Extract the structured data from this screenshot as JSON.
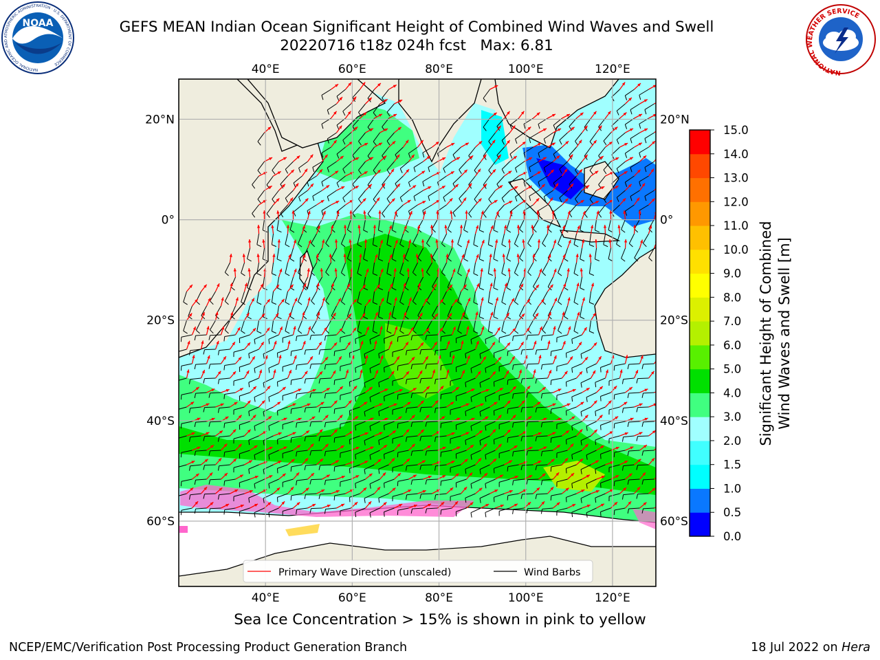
{
  "title": {
    "line1": "GEFS MEAN Indian Ocean Significant Height of Combined Wind Waves and Swell",
    "line2": "20220716 t18z 024h fcst   Max: 6.81"
  },
  "logos": {
    "left": {
      "name": "noaa-logo",
      "text": "NOAA",
      "ring_text": "NATIONAL OCEANIC AND ATMOSPHERIC ADMINISTRATION · U.S. DEPARTMENT OF COMMERCE"
    },
    "right": {
      "name": "nws-logo",
      "ring_text": "NATIONAL WEATHER SERVICE"
    }
  },
  "map": {
    "lon_ticks": [
      "40°E",
      "60°E",
      "80°E",
      "100°E",
      "120°E"
    ],
    "lon_values": [
      40,
      60,
      80,
      100,
      120
    ],
    "lat_ticks_left": [
      "20°N",
      "0°",
      "20°S",
      "40°S",
      "60°S"
    ],
    "lat_ticks_right": [
      "20°N",
      "0°",
      "20°S",
      "40°S",
      "60°S"
    ],
    "lat_values": [
      20,
      0,
      -20,
      -40,
      -60
    ],
    "extent": {
      "lon_min": 20,
      "lon_max": 130,
      "lat_min": -73,
      "lat_max": 28
    },
    "legend": [
      {
        "label": "Primary Wave Direction (unscaled)",
        "color": "#ff0000"
      },
      {
        "label": "Wind Barbs",
        "color": "#000000"
      }
    ],
    "land_color": "#efedde",
    "ice_color": "#ffffff"
  },
  "colorbar": {
    "title_line1": "Significant Height of Combined",
    "title_line2": "Wind Waves and Swell [m]",
    "ticks": [
      "0.0",
      "0.5",
      "1.0",
      "1.5",
      "2.0",
      "3.0",
      "4.0",
      "5.0",
      "6.0",
      "7.0",
      "8.0",
      "9.0",
      "10.0",
      "11.0",
      "12.0",
      "13.0",
      "14.0",
      "15.0"
    ],
    "colors": [
      "#0000ff",
      "#0a78ff",
      "#00ffff",
      "#40ffff",
      "#a0ffff",
      "#40ff80",
      "#00e000",
      "#58f000",
      "#b4f000",
      "#dcf000",
      "#ffff00",
      "#ffe000",
      "#ffc000",
      "#ff9800",
      "#ff7000",
      "#ff4800",
      "#ff0000"
    ]
  },
  "bottom_note": "Sea Ice Concentration > 15% is shown in pink to yellow",
  "credit": "NCEP/EMC/Verification Post Processing Product Generation Branch",
  "date_line": {
    "date": "18 Jul 2022 on",
    "machine": "Hera"
  }
}
